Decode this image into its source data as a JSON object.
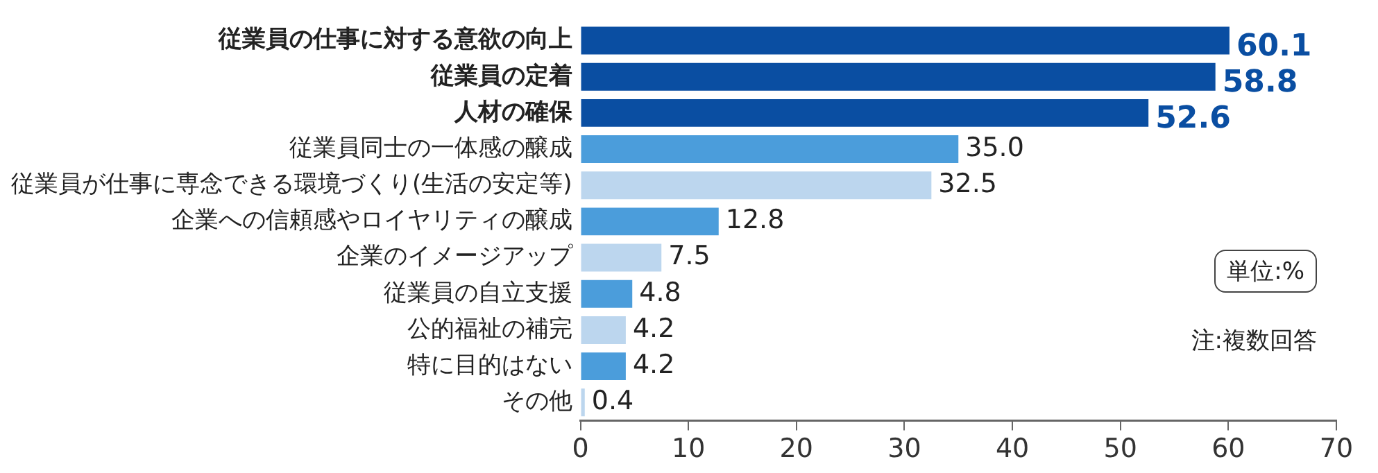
{
  "chart_data": {
    "type": "bar",
    "orientation": "horizontal",
    "categories": [
      "従業員の仕事に対する意欲の向上",
      "従業員の定着",
      "人材の確保",
      "従業員同士の一体感の醸成",
      "従業員が仕事に専念できる環境づくり(生活の安定等)",
      "企業への信頼感やロイヤリティの醸成",
      "企業のイメージアップ",
      "従業員の自立支援",
      "公的福祉の補完",
      "特に目的はない",
      "その他"
    ],
    "values": [
      60.1,
      58.8,
      52.6,
      35.0,
      32.5,
      12.8,
      7.5,
      4.8,
      4.2,
      4.2,
      0.4
    ],
    "colors": [
      "#0a4ea2",
      "#0a4ea2",
      "#0a4ea2",
      "#4b9ddb",
      "#bcd6ee",
      "#4b9ddb",
      "#bcd6ee",
      "#4b9ddb",
      "#bcd6ee",
      "#4b9ddb",
      "#bcd6ee"
    ],
    "value_labels": [
      "60.1",
      "58.8",
      "52.6",
      "35.0",
      "32.5",
      "12.8",
      "7.5",
      "4.8",
      "4.2",
      "4.2",
      "0.4"
    ],
    "xlim": [
      0,
      70
    ],
    "xticks": [
      0,
      10,
      20,
      30,
      40,
      50,
      60,
      70
    ],
    "grid": false,
    "legend": false,
    "annotations": [
      "単位:%",
      "注:複数回答"
    ]
  }
}
